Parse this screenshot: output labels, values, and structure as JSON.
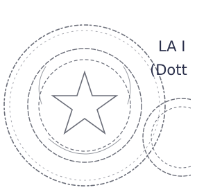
{
  "stamp_text": {
    "line1": "LA I",
    "line2": "(Dott"
  }
}
